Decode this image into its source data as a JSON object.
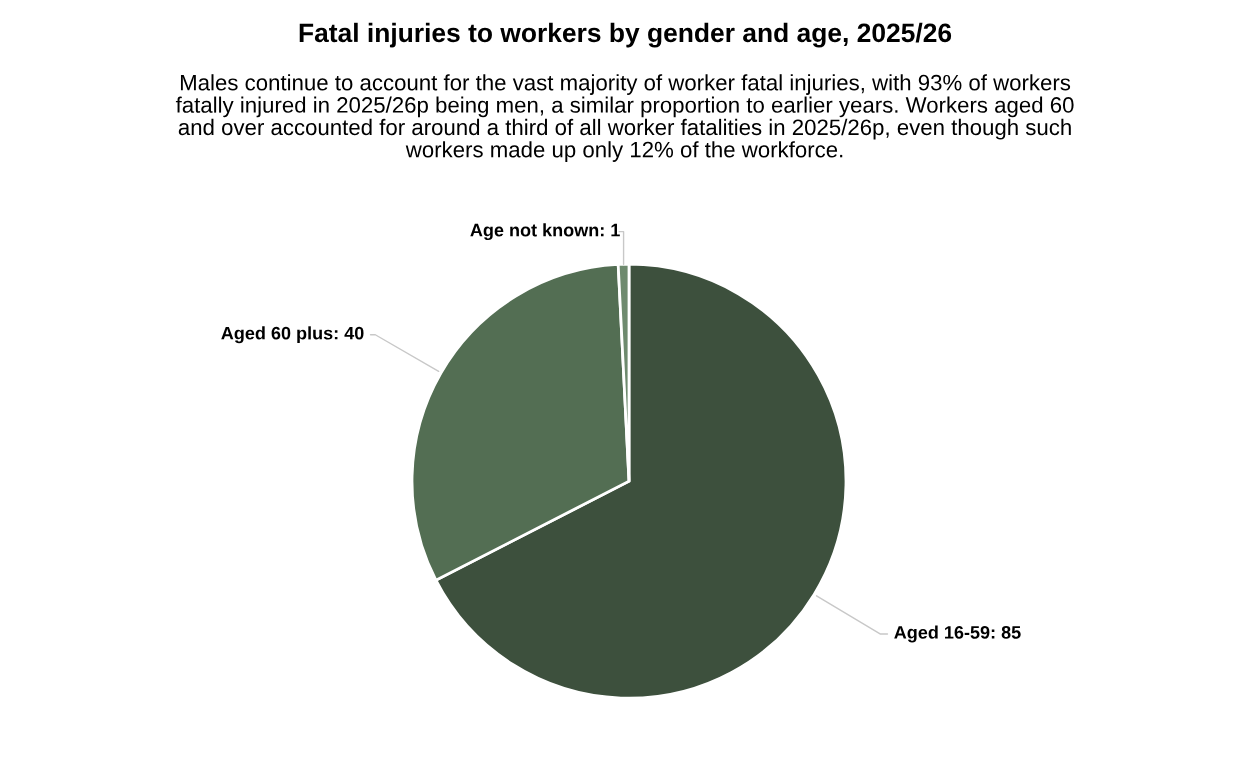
{
  "chart_data": {
    "type": "pie",
    "title": "Fatal injuries to workers by gender and age, 2025/26",
    "subtitle": "Males continue to account for the vast majority of worker fatal injuries, with 93% of workers\nfatally injured in 2025/26p being men, a similar proportion to earlier years. Workers aged 60\nand over accounted for around a third of all worker fatalities in 2025/26p, even though such\nworkers made up only 12% of the workforce.",
    "categories": [
      "Aged 16-59: 85",
      "Aged 60 plus: 40",
      "Age not known: 1"
    ],
    "values": [
      85,
      40,
      1
    ],
    "colors": [
      "#3d503d",
      "#536e53",
      "#6e8a6e"
    ],
    "legend": false
  }
}
